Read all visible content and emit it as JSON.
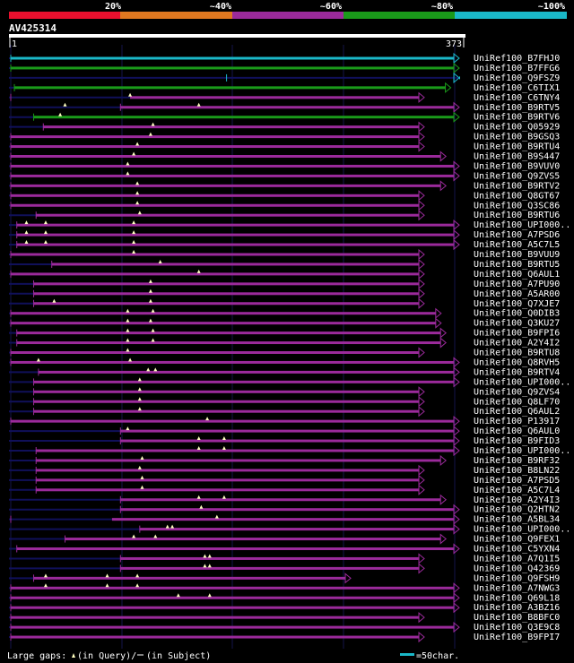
{
  "chart_data": {
    "type": "alignment",
    "query": {
      "id": "AV425314",
      "start": 1,
      "end": 373
    },
    "identity_scale": [
      "20%",
      "~40%",
      "~60%",
      "~80%",
      "~100%"
    ],
    "colors": {
      "20": "#e8102e",
      "40": "#e07820",
      "60": "#9b2a9b",
      "80": "#1a9a1a",
      "100": "#1ab8c8",
      "vline": "#14144a",
      "thin": "#10105a",
      "tri": "#ffffc0",
      "white": "#ffffff"
    },
    "legend": {
      "gaps_text": "Large gaps:",
      "query_text": "(in Query)/",
      "subject_text": "(in Subject)",
      "scale_text": "=50char."
    },
    "hits": [
      {
        "label": "UniRef100_B7FHJ0",
        "start": 1,
        "end": 373,
        "thin_end": 1,
        "color": "100",
        "arrow": true,
        "gaps": []
      },
      {
        "label": "UniRef100_B7FFG6",
        "start": 1,
        "end": 373,
        "thin_end": 1,
        "color": "80",
        "arrow": true,
        "gaps": []
      },
      {
        "label": "UniRef100_Q9FSZ9",
        "start": 180,
        "end": 373,
        "thin_end": 373,
        "color": "100",
        "arrow": true,
        "gaps": []
      },
      {
        "label": "UniRef100_C6TIX1",
        "start": 4,
        "end": 366,
        "thin_end": 4,
        "color": "80",
        "arrow": true,
        "gaps": []
      },
      {
        "label": "UniRef100_C6TNY4",
        "start": 1,
        "end": 344,
        "thin_end": 100,
        "color": "60",
        "arrow": true,
        "gaps": [
          100
        ]
      },
      {
        "label": "UniRef100_B9RTV5",
        "start": 92,
        "end": 373,
        "thin_end": 92,
        "color": "60",
        "arrow": true,
        "gaps": [
          46,
          157
        ]
      },
      {
        "label": "UniRef100_B9RTV6",
        "start": 20,
        "end": 373,
        "thin_end": 20,
        "color": "80",
        "arrow": true,
        "gaps": [
          42
        ]
      },
      {
        "label": "UniRef100_Q05929",
        "start": 28,
        "end": 344,
        "thin_end": 28,
        "color": "60",
        "arrow": true,
        "gaps": [
          119
        ]
      },
      {
        "label": "UniRef100_B9GSQ3",
        "start": 1,
        "end": 344,
        "thin_end": 1,
        "color": "60",
        "arrow": true,
        "gaps": [
          117
        ]
      },
      {
        "label": "UniRef100_B9RTU4",
        "start": 1,
        "end": 344,
        "thin_end": 1,
        "color": "60",
        "arrow": true,
        "gaps": [
          106
        ]
      },
      {
        "label": "UniRef100_B9S447",
        "start": 1,
        "end": 362,
        "thin_end": 1,
        "color": "60",
        "arrow": true,
        "gaps": [
          103
        ]
      },
      {
        "label": "UniRef100_B9VUV0",
        "start": 1,
        "end": 373,
        "thin_end": 1,
        "color": "60",
        "arrow": true,
        "gaps": [
          98
        ]
      },
      {
        "label": "UniRef100_Q9ZVS5",
        "start": 1,
        "end": 373,
        "thin_end": 1,
        "color": "60",
        "arrow": true,
        "gaps": [
          98
        ]
      },
      {
        "label": "UniRef100_B9RTV2",
        "start": 1,
        "end": 362,
        "thin_end": 1,
        "color": "60",
        "arrow": true,
        "gaps": [
          106
        ]
      },
      {
        "label": "UniRef100_Q8GT67",
        "start": 1,
        "end": 344,
        "thin_end": 1,
        "color": "60",
        "arrow": true,
        "gaps": [
          106
        ]
      },
      {
        "label": "UniRef100_Q3SC86",
        "start": 1,
        "end": 344,
        "thin_end": 1,
        "color": "60",
        "arrow": true,
        "gaps": [
          106
        ]
      },
      {
        "label": "UniRef100_B9RTU6",
        "start": 22,
        "end": 344,
        "thin_end": 22,
        "color": "60",
        "arrow": true,
        "gaps": [
          108
        ]
      },
      {
        "label": "UniRef100_UPI000..",
        "start": 6,
        "end": 373,
        "thin_end": 6,
        "color": "60",
        "arrow": true,
        "gaps": [
          14,
          30,
          103
        ]
      },
      {
        "label": "UniRef100_A7PSD6",
        "start": 6,
        "end": 373,
        "thin_end": 6,
        "color": "60",
        "arrow": true,
        "gaps": [
          14,
          30,
          103
        ]
      },
      {
        "label": "UniRef100_A5C7L5",
        "start": 6,
        "end": 373,
        "thin_end": 6,
        "color": "60",
        "arrow": true,
        "gaps": [
          14,
          30,
          103
        ]
      },
      {
        "label": "UniRef100_B9VUU9",
        "start": 1,
        "end": 344,
        "thin_end": 1,
        "color": "60",
        "arrow": true,
        "gaps": [
          103
        ]
      },
      {
        "label": "UniRef100_B9RTU5",
        "start": 35,
        "end": 344,
        "thin_end": 35,
        "color": "60",
        "arrow": true,
        "gaps": [
          125
        ]
      },
      {
        "label": "UniRef100_Q6AUL1",
        "start": 1,
        "end": 344,
        "thin_end": 1,
        "color": "60",
        "arrow": true,
        "gaps": [
          157
        ]
      },
      {
        "label": "UniRef100_A7PU90",
        "start": 20,
        "end": 344,
        "thin_end": 20,
        "color": "60",
        "arrow": true,
        "gaps": [
          117
        ]
      },
      {
        "label": "UniRef100_A5AR00",
        "start": 20,
        "end": 344,
        "thin_end": 20,
        "color": "60",
        "arrow": true,
        "gaps": [
          117
        ]
      },
      {
        "label": "UniRef100_Q7XJE7",
        "start": 20,
        "end": 344,
        "thin_end": 20,
        "color": "60",
        "arrow": true,
        "gaps": [
          37,
          117
        ]
      },
      {
        "label": "UniRef100_Q0DIB3",
        "start": 1,
        "end": 358,
        "thin_end": 1,
        "color": "60",
        "arrow": true,
        "gaps": [
          98,
          119
        ]
      },
      {
        "label": "UniRef100_Q3KU27",
        "start": 1,
        "end": 358,
        "thin_end": 1,
        "color": "60",
        "arrow": true,
        "gaps": [
          98,
          117
        ]
      },
      {
        "label": "UniRef100_B9FPI6",
        "start": 6,
        "end": 362,
        "thin_end": 6,
        "color": "60",
        "arrow": true,
        "gaps": [
          98,
          119
        ]
      },
      {
        "label": "UniRef100_A2Y4I2",
        "start": 6,
        "end": 362,
        "thin_end": 6,
        "color": "60",
        "arrow": true,
        "gaps": [
          98,
          119
        ]
      },
      {
        "label": "UniRef100_B9RTU8",
        "start": 1,
        "end": 344,
        "thin_end": 1,
        "color": "60",
        "arrow": true,
        "gaps": [
          98
        ]
      },
      {
        "label": "UniRef100_Q8RVH5",
        "start": 1,
        "end": 373,
        "thin_end": 1,
        "color": "60",
        "arrow": true,
        "gaps": [
          24,
          100
        ]
      },
      {
        "label": "UniRef100_B9RTV4",
        "start": 24,
        "end": 373,
        "thin_end": 24,
        "color": "60",
        "arrow": true,
        "gaps": [
          115,
          121
        ]
      },
      {
        "label": "UniRef100_UPI000..",
        "start": 20,
        "end": 373,
        "thin_end": 20,
        "color": "60",
        "arrow": true,
        "gaps": [
          108
        ]
      },
      {
        "label": "UniRef100_Q9ZVS4",
        "start": 20,
        "end": 344,
        "thin_end": 20,
        "color": "60",
        "arrow": true,
        "gaps": [
          108
        ]
      },
      {
        "label": "UniRef100_Q8LF70",
        "start": 20,
        "end": 344,
        "thin_end": 20,
        "color": "60",
        "arrow": true,
        "gaps": [
          108
        ]
      },
      {
        "label": "UniRef100_Q6AUL2",
        "start": 20,
        "end": 344,
        "thin_end": 20,
        "color": "60",
        "arrow": true,
        "gaps": [
          108
        ]
      },
      {
        "label": "UniRef100_P13917",
        "start": 1,
        "end": 373,
        "thin_end": 1,
        "color": "60",
        "arrow": true,
        "gaps": [
          164
        ]
      },
      {
        "label": "UniRef100_Q6AUL0",
        "start": 92,
        "end": 373,
        "thin_end": 92,
        "color": "60",
        "arrow": true,
        "gaps": [
          98
        ]
      },
      {
        "label": "UniRef100_B9FID3",
        "start": 92,
        "end": 373,
        "thin_end": 92,
        "color": "60",
        "arrow": true,
        "gaps": [
          157,
          178
        ]
      },
      {
        "label": "UniRef100_UPI000..",
        "start": 22,
        "end": 373,
        "thin_end": 22,
        "color": "60",
        "arrow": true,
        "gaps": [
          157,
          178
        ]
      },
      {
        "label": "UniRef100_B9RF32",
        "start": 22,
        "end": 362,
        "thin_end": 22,
        "color": "60",
        "arrow": true,
        "gaps": [
          110
        ]
      },
      {
        "label": "UniRef100_B8LN22",
        "start": 22,
        "end": 344,
        "thin_end": 22,
        "color": "60",
        "arrow": true,
        "gaps": [
          108
        ]
      },
      {
        "label": "UniRef100_A7PSD5",
        "start": 22,
        "end": 344,
        "thin_end": 22,
        "color": "60",
        "arrow": true,
        "gaps": [
          110
        ]
      },
      {
        "label": "UniRef100_A5C7L4",
        "start": 22,
        "end": 344,
        "thin_end": 22,
        "color": "60",
        "arrow": true,
        "gaps": [
          110
        ]
      },
      {
        "label": "UniRef100_A2Y4I3",
        "start": 92,
        "end": 362,
        "thin_end": 92,
        "color": "60",
        "arrow": true,
        "gaps": [
          157,
          178
        ]
      },
      {
        "label": "UniRef100_Q2HTN2",
        "start": 92,
        "end": 373,
        "thin_end": 92,
        "color": "60",
        "arrow": true,
        "gaps": [
          159
        ]
      },
      {
        "label": "UniRef100_A5BL34",
        "start": 1,
        "end": 373,
        "thin_end": 85,
        "color": "60",
        "arrow": true,
        "gaps": [
          172
        ]
      },
      {
        "label": "UniRef100_UPI000..",
        "start": 108,
        "end": 373,
        "thin_end": 108,
        "color": "60",
        "arrow": true,
        "gaps": [
          131,
          135
        ]
      },
      {
        "label": "UniRef100_Q9FEX1",
        "start": 46,
        "end": 362,
        "thin_end": 46,
        "color": "60",
        "arrow": true,
        "gaps": [
          103,
          121
        ]
      },
      {
        "label": "UniRef100_C5YXN4",
        "start": 6,
        "end": 373,
        "thin_end": 6,
        "color": "60",
        "arrow": true,
        "gaps": []
      },
      {
        "label": "UniRef100_A7Q1I5",
        "start": 92,
        "end": 344,
        "thin_end": 92,
        "color": "60",
        "arrow": true,
        "gaps": [
          162,
          166
        ]
      },
      {
        "label": "UniRef100_Q42369",
        "start": 92,
        "end": 344,
        "thin_end": 92,
        "color": "60",
        "arrow": true,
        "gaps": [
          162,
          166
        ]
      },
      {
        "label": "UniRef100_Q9FSH9",
        "start": 20,
        "end": 283,
        "thin_end": 20,
        "color": "60",
        "arrow": true,
        "gaps": [
          30,
          81,
          106
        ]
      },
      {
        "label": "UniRef100_A7NWG3",
        "start": 1,
        "end": 373,
        "thin_end": 1,
        "color": "60",
        "arrow": true,
        "gaps": [
          30,
          81,
          106
        ]
      },
      {
        "label": "UniRef100_Q69L18",
        "start": 1,
        "end": 373,
        "thin_end": 1,
        "color": "60",
        "arrow": true,
        "gaps": [
          140,
          166
        ]
      },
      {
        "label": "UniRef100_A3BZ16",
        "start": 1,
        "end": 373,
        "thin_end": 1,
        "color": "60",
        "arrow": true,
        "gaps": []
      },
      {
        "label": "UniRef100_B8BFC0",
        "start": 1,
        "end": 344,
        "thin_end": 1,
        "color": "60",
        "arrow": true,
        "gaps": []
      },
      {
        "label": "UniRef100_Q3E9C8",
        "start": 1,
        "end": 373,
        "thin_end": 1,
        "color": "60",
        "arrow": true,
        "gaps": []
      },
      {
        "label": "UniRef100_B9FPI7",
        "start": 1,
        "end": 344,
        "thin_end": 1,
        "color": "60",
        "arrow": true,
        "gaps": []
      }
    ]
  }
}
